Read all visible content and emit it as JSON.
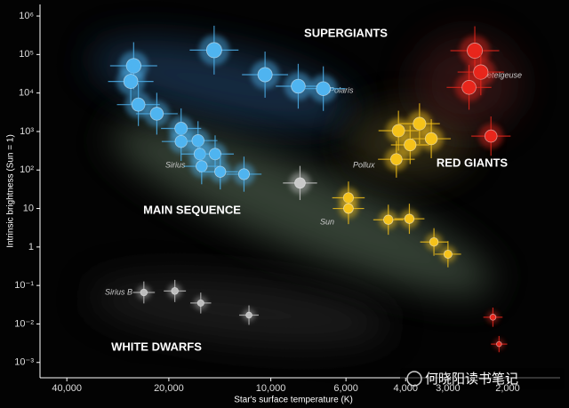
{
  "chart_data": {
    "type": "scatter",
    "xlabel": "Star's surface temperature (K)",
    "ylabel": "Intrinsic brightness (Sun = 1)",
    "xlog": true,
    "ylog": true,
    "x_inverted": true,
    "xlim": [
      48000,
      1400
    ],
    "ylim": [
      0.0004,
      2000000
    ],
    "xticks": [
      {
        "value": 40000,
        "label": "40,000"
      },
      {
        "value": 20000,
        "label": "20,000"
      },
      {
        "value": 10000,
        "label": "10,000"
      },
      {
        "value": 6000,
        "label": "6,000"
      },
      {
        "value": 4000,
        "label": "4,000"
      },
      {
        "value": 3000,
        "label": "3,000"
      },
      {
        "value": 2000,
        "label": "2,000"
      }
    ],
    "yticks": [
      {
        "value": 1000000,
        "label": "10⁶"
      },
      {
        "value": 100000,
        "label": "10⁵"
      },
      {
        "value": 10000,
        "label": "10⁴"
      },
      {
        "value": 1000,
        "label": "10³"
      },
      {
        "value": 100,
        "label": "10²"
      },
      10,
      1,
      {
        "value": 0.1,
        "label": "10⁻¹"
      },
      {
        "value": 0.01,
        "label": "10⁻²"
      },
      {
        "value": 0.001,
        "label": "10⁻³"
      }
    ],
    "annotations": [
      "SUPERGIANTS",
      "MAIN SEQUENCE",
      "RED GIANTS",
      "WHITE DWARFS",
      "Polaris",
      "Betelgeuse",
      "Pollux",
      "Sirius",
      "Sun",
      "Sirius B"
    ],
    "watermark": "何晓阳读书笔记",
    "series": [
      {
        "color": "#4fb4f0",
        "x": [
          25400,
          14700,
          25900,
          10400,
          8300,
          7000,
          24600,
          21700,
          18400,
          18400,
          16400,
          16200,
          14600,
          16000,
          14100,
          12000
        ],
        "values": [
          51000,
          130000,
          20000,
          30000,
          15000,
          13000,
          5000,
          2900,
          1200,
          550,
          580,
          260,
          260,
          125,
          90,
          78
        ]
      },
      {
        "color": "#c8c8c8",
        "x": [
          8200
        ],
        "values": [
          46
        ]
      },
      {
        "color": "#f5c21a",
        "x": [
          5900,
          5900,
          4500,
          3900,
          3300,
          3000,
          4200,
          3640,
          3360,
          3880,
          4260
        ],
        "values": [
          19,
          10,
          5.1,
          5.4,
          1.35,
          0.65,
          1050,
          1600,
          650,
          450,
          190
        ]
      },
      {
        "color": "#e8261c",
        "x": [
          2500,
          2400,
          2600,
          2240,
          2210,
          2120
        ],
        "values": [
          126000,
          35000,
          14000,
          760,
          0.015,
          0.003
        ]
      },
      {
        "color": "#bdbdbd",
        "x": [
          23700,
          19200,
          16100,
          11600
        ],
        "values": [
          0.066,
          0.072,
          0.035,
          0.017
        ]
      }
    ]
  }
}
